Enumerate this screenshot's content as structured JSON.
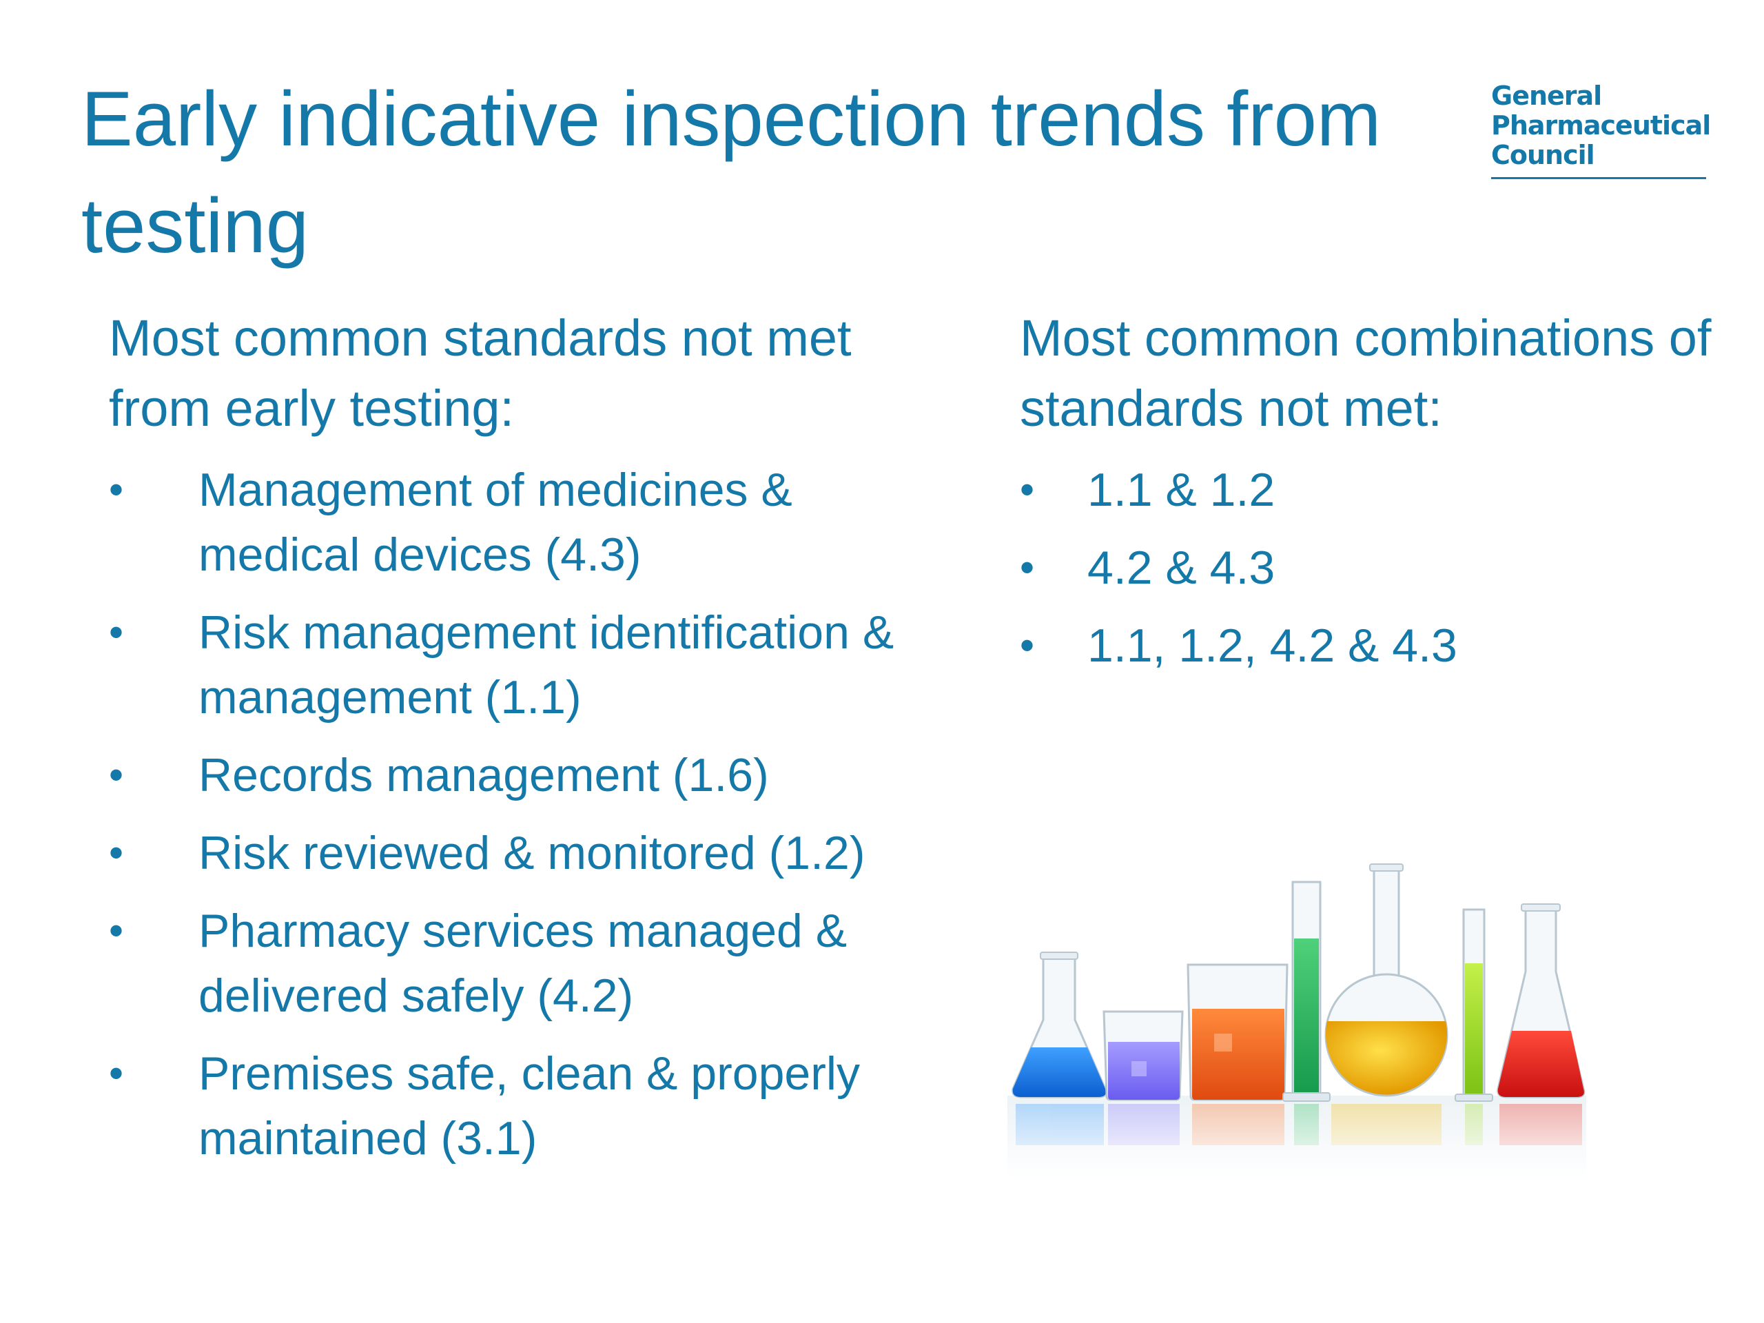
{
  "title": "Early indicative inspection trends from testing",
  "logo": {
    "lines": [
      "General",
      "Pharmaceutical",
      "Council"
    ]
  },
  "left_column": {
    "heading": "Most common standards not met from early testing:",
    "items": [
      "Management of medicines & medical devices (4.3)",
      "Risk management identification & management (1.1)",
      "Records management (1.6)",
      "Risk reviewed & monitored (1.2)",
      "Pharmacy services managed & delivered safely (4.2)",
      "Premises safe, clean & properly maintained (3.1)"
    ]
  },
  "right_column": {
    "heading": "Most common combinations of standards not met:",
    "items": [
      "1.1 & 1.2",
      "4.2 & 4.3",
      "1.1, 1.2, 4.2 & 4.3"
    ]
  },
  "bullet_char": "•",
  "colors": {
    "text": "#1478a8",
    "background": "#ffffff"
  }
}
